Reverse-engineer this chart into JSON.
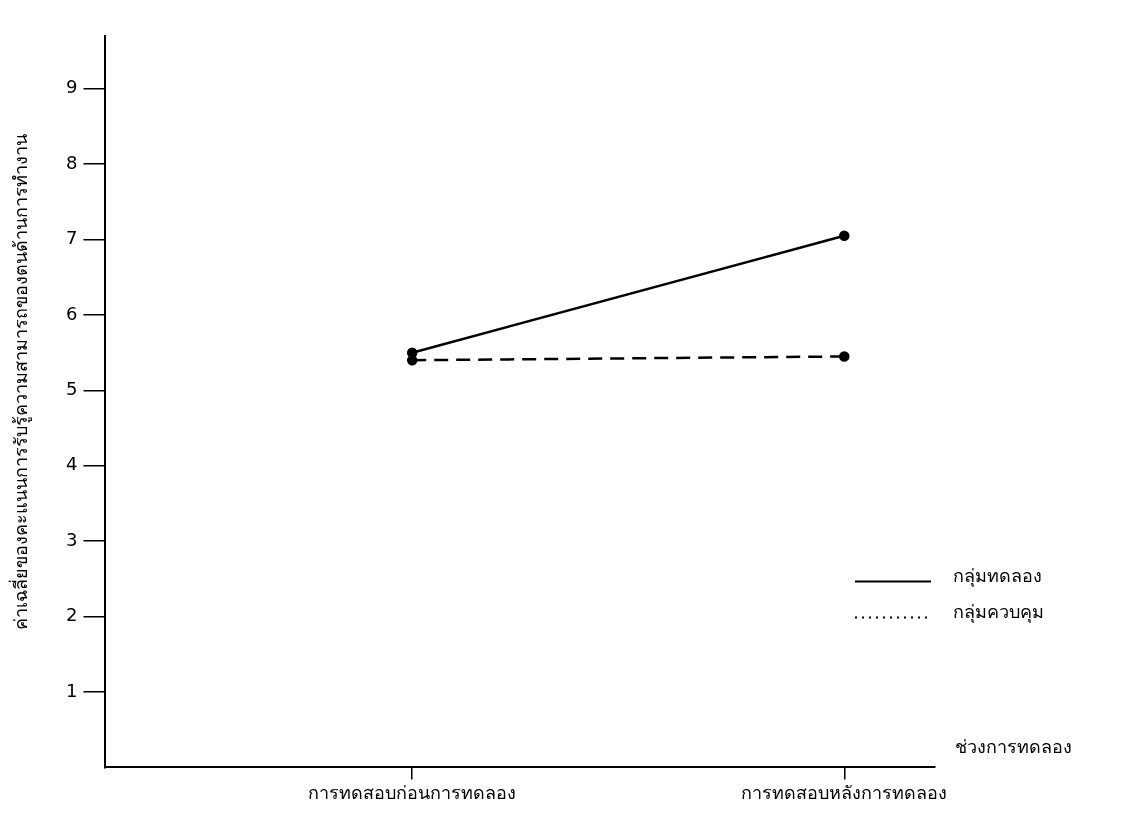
{
  "chart_data": {
    "type": "line",
    "xlabel": "ช่วงการทดลอง",
    "ylabel": "ค่าเฉลี่ยของคะแนนการรับรู้ความสามารถของตนด้านการทำงาน",
    "categories": [
      "การทดสอบก่อนการทดลอง",
      "การทดสอบหลังการทดลอง"
    ],
    "series": [
      {
        "name": "กลุ่มทดลอง",
        "color": "#000000",
        "values": [
          5.5,
          7.05
        ],
        "line_style": "solid"
      },
      {
        "name": "กลุ่มควบคุม",
        "color": "#000000",
        "values": [
          5.4,
          5.45
        ],
        "line_style": "dashed"
      }
    ],
    "ylim": [
      0,
      9.7
    ],
    "yticks": [
      1,
      2,
      3,
      4,
      5,
      6,
      7,
      8,
      9
    ],
    "grid": false,
    "legend": "bottom right",
    "marker": "circle"
  }
}
